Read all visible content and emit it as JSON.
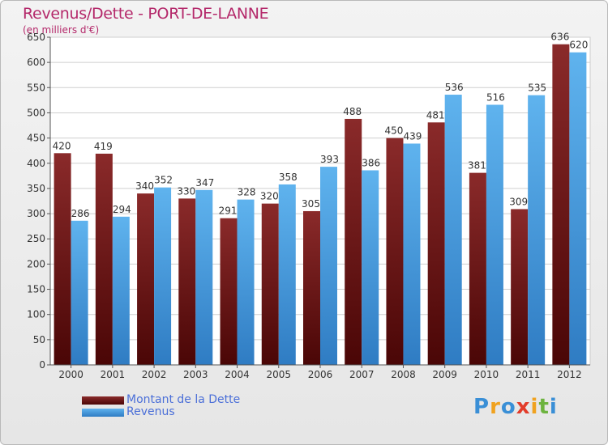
{
  "header": {
    "title": "Revenus/Dette - PORT-DE-LANNE",
    "subtitle": "(en milliers d'€)"
  },
  "legend": {
    "items": [
      {
        "label": "Montant de la Dette",
        "color": "#6e1414"
      },
      {
        "label": "Revenus",
        "color": "#3f9ae0"
      }
    ]
  },
  "logo": {
    "letters": [
      "P",
      "r",
      "o",
      "x",
      "i",
      "t",
      "i"
    ],
    "colors": [
      "#3a8fd6",
      "#f0a21f",
      "#3a8fd6",
      "#e23c2a",
      "#f0a21f",
      "#6db33f",
      "#3a8fd6"
    ]
  },
  "chart_data": {
    "type": "bar",
    "title": "Revenus/Dette - PORT-DE-LANNE",
    "subtitle": "(en milliers d'€)",
    "xlabel": "",
    "ylabel": "",
    "ylim": [
      0,
      650
    ],
    "yticks": [
      0,
      50,
      100,
      150,
      200,
      250,
      300,
      350,
      400,
      450,
      500,
      550,
      600,
      650
    ],
    "grid": true,
    "legend_position": "bottom-left",
    "categories": [
      "2000",
      "2001",
      "2002",
      "2003",
      "2004",
      "2005",
      "2006",
      "2007",
      "2008",
      "2009",
      "2010",
      "2011",
      "2012"
    ],
    "series": [
      {
        "name": "Montant de la Dette",
        "color": "#6e1414",
        "values": [
          420,
          419,
          340,
          330,
          291,
          320,
          305,
          488,
          450,
          481,
          381,
          309,
          636
        ]
      },
      {
        "name": "Revenus",
        "color": "#3f9ae0",
        "values": [
          286,
          294,
          352,
          347,
          328,
          358,
          393,
          386,
          439,
          536,
          516,
          535,
          620
        ]
      }
    ]
  }
}
